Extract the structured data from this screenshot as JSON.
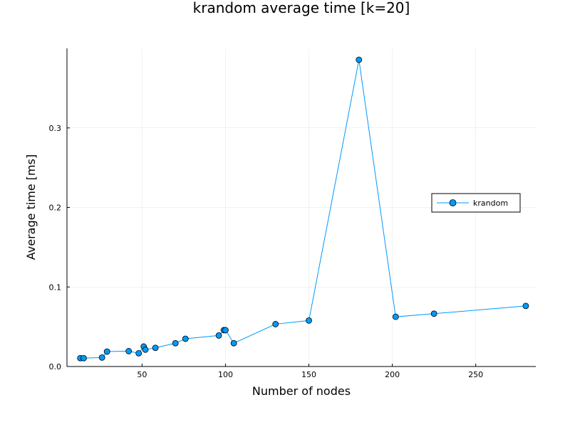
{
  "chart_data": {
    "type": "line",
    "title": "krandom average time [k=20]",
    "xlabel": "Number of nodes",
    "ylabel": "Average time [ms]",
    "xlim": [
      5,
      286
    ],
    "ylim": [
      0,
      0.4
    ],
    "xticks": [
      50,
      100,
      150,
      200,
      250
    ],
    "xtick_labels": [
      "50",
      "100",
      "150",
      "200",
      "250"
    ],
    "yticks": [
      0.0,
      0.1,
      0.2,
      0.3
    ],
    "ytick_labels": [
      "0.0",
      "0.1",
      "0.2",
      "0.3"
    ],
    "grid": true,
    "legend_position": "right",
    "series": [
      {
        "name": "krandom",
        "color": "#009AFA",
        "marker": "circle",
        "x": [
          13,
          15,
          26,
          29,
          42,
          48,
          51,
          52,
          58,
          70,
          76,
          96,
          99,
          100,
          105,
          130,
          150,
          180,
          202,
          225,
          280
        ],
        "y": [
          0.0105,
          0.0105,
          0.0113,
          0.0188,
          0.0193,
          0.0167,
          0.0251,
          0.0212,
          0.0235,
          0.0293,
          0.0349,
          0.039,
          0.0457,
          0.0457,
          0.0293,
          0.0533,
          0.0578,
          0.3857,
          0.0625,
          0.0664,
          0.0762
        ]
      }
    ]
  }
}
